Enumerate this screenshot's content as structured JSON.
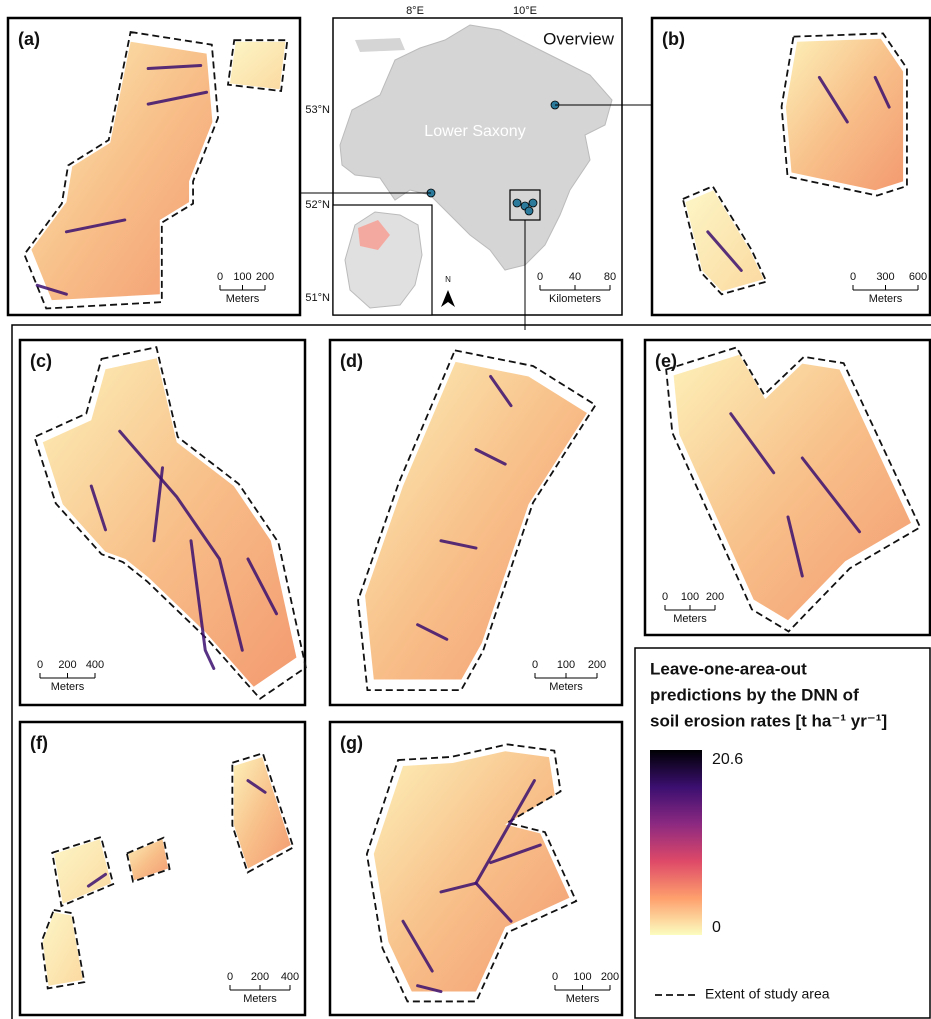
{
  "panels": [
    {
      "label": "(a)",
      "scale": {
        "ticks": [
          "0",
          "100",
          "200"
        ],
        "unit": "Meters"
      }
    },
    {
      "label": "(b)",
      "scale": {
        "ticks": [
          "0",
          "300",
          "600"
        ],
        "unit": "Meters"
      }
    },
    {
      "label": "(c)",
      "scale": {
        "ticks": [
          "0",
          "200",
          "400"
        ],
        "unit": "Meters"
      }
    },
    {
      "label": "(d)",
      "scale": {
        "ticks": [
          "0",
          "100",
          "200"
        ],
        "unit": "Meters"
      }
    },
    {
      "label": "(e)",
      "scale": {
        "ticks": [
          "0",
          "100",
          "200"
        ],
        "unit": "Meters"
      }
    },
    {
      "label": "(f)",
      "scale": {
        "ticks": [
          "0",
          "200",
          "400"
        ],
        "unit": "Meters"
      }
    },
    {
      "label": "(g)",
      "scale": {
        "ticks": [
          "0",
          "100",
          "200"
        ],
        "unit": "Meters"
      }
    }
  ],
  "overview": {
    "title": "Overview",
    "region": "Lower Saxony",
    "lon_labels": [
      "8°E",
      "10°E"
    ],
    "lat_labels": [
      "53°N",
      "52°N",
      "51°N"
    ],
    "north": "N",
    "scale": {
      "ticks": [
        "0",
        "40",
        "80"
      ],
      "unit": "Kilometers"
    }
  },
  "legend": {
    "title": [
      "Leave-one-area-out",
      "predictions by the DNN of",
      "soil erosion rates [t ha⁻¹ yr⁻¹]"
    ],
    "max": "20.6",
    "min": "0",
    "extent": "Extent of study area"
  }
}
